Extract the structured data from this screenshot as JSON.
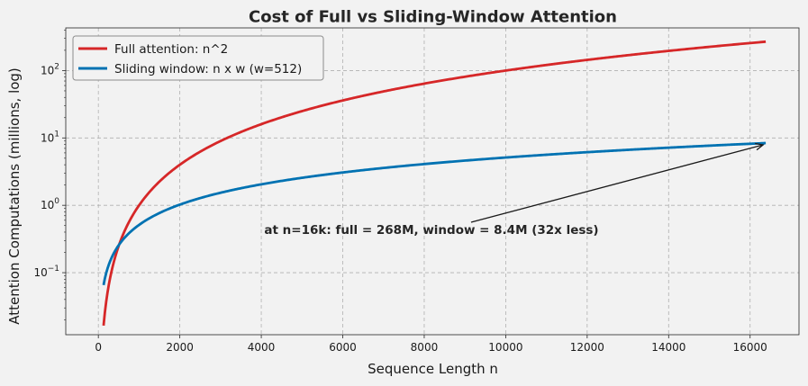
{
  "chart_data": {
    "type": "line",
    "title": "Cost of Full vs Sliding-Window Attention",
    "xlabel": "Sequence Length n",
    "ylabel": "Attention Computations (millions, log)",
    "xlim": [
      -800,
      17200
    ],
    "ylim": [
      0.012,
      430
    ],
    "yscale": "log",
    "grid": true,
    "legend_position": "top-left",
    "x_ticks": [
      0,
      2000,
      4000,
      6000,
      8000,
      10000,
      12000,
      14000,
      16000
    ],
    "x_tick_labels": [
      "0",
      "2000",
      "4000",
      "6000",
      "8000",
      "10000",
      "12000",
      "14000",
      "16000"
    ],
    "y_ticks": [
      {
        "value": 0.1,
        "base": "10",
        "exp": "−1"
      },
      {
        "value": 1,
        "base": "10",
        "exp": "0"
      },
      {
        "value": 10,
        "base": "10",
        "exp": "1"
      },
      {
        "value": 100,
        "base": "10",
        "exp": "2"
      }
    ],
    "x": [
      128,
      256,
      384,
      512,
      768,
      1024,
      1536,
      2048,
      3072,
      4096,
      5120,
      6144,
      7168,
      8192,
      9216,
      10240,
      11264,
      12288,
      13312,
      14336,
      15360,
      16384
    ],
    "series": [
      {
        "name": "Full attention: n^2",
        "color": "#d62728",
        "values": [
          0.016384,
          0.065536,
          0.147456,
          0.262144,
          0.589824,
          1.048576,
          2.359296,
          4.194304,
          9.437184,
          16.777216,
          26.2144,
          37.748736,
          51.380224,
          67.108864,
          84.934656,
          104.8576,
          126.877696,
          150.994944,
          177.209344,
          205.520896,
          235.9296,
          268.435456
        ]
      },
      {
        "name": "Sliding window: n x w (w=512)",
        "color": "#0072b2",
        "values": [
          0.065536,
          0.131072,
          0.196608,
          0.262144,
          0.393216,
          0.524288,
          0.786432,
          1.048576,
          1.572864,
          2.097152,
          2.62144,
          3.145728,
          3.670016,
          4.194304,
          4.718592,
          5.24288,
          5.767168,
          6.291456,
          6.815744,
          7.340032,
          7.86432,
          8.388608
        ]
      }
    ],
    "annotation": {
      "text": "at n=16k: full = 268M, window = 8.4M (32x less)",
      "target": [
        16384,
        8.4
      ],
      "text_anchor": [
        9150,
        0.56
      ]
    }
  }
}
